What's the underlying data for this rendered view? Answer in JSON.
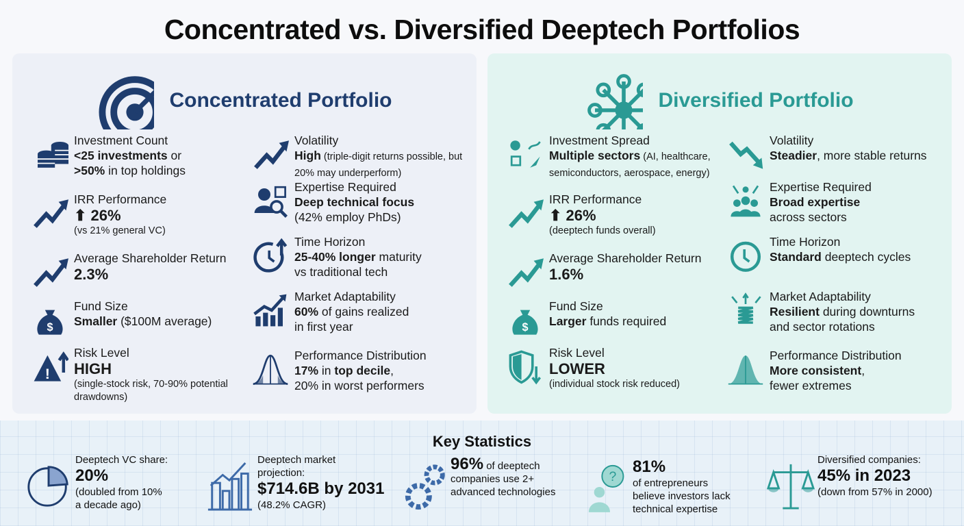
{
  "title": "Concentrated vs. Diversified Deeptech Portfolios",
  "colors": {
    "navy": "#1f3d6e",
    "teal": "#2a9a94",
    "left_bg": "#edf0f7",
    "right_bg": "#e2f4f1"
  },
  "concentrated": {
    "title": "Concentrated Portfolio",
    "icon": "target-icon",
    "items": [
      {
        "icon": "coins-icon",
        "label": "Investment Count",
        "value": [
          {
            "b": "<25 investments"
          },
          {
            "t": " or"
          },
          {
            "br": 1
          },
          {
            "b": ">50%"
          },
          {
            "t": " in top holdings"
          }
        ]
      },
      {
        "icon": "trend-up-icon",
        "label": "IRR Performance",
        "big": "⬆ 26%",
        "sub": "(vs 21% general VC)"
      },
      {
        "icon": "trend-up-icon",
        "label": "Average Shareholder Return",
        "big": "2.3%"
      },
      {
        "icon": "money-bag-icon",
        "label": "Fund Size",
        "value": [
          {
            "b": "Smaller"
          },
          {
            "t": " ($100M average)"
          }
        ]
      },
      {
        "icon": "warning-up-icon",
        "label": "Risk Level",
        "big": "HIGH",
        "sub": "(single-stock risk, 70-90% potential drawdowns)"
      },
      {
        "icon": "trend-up-icon",
        "label": "Volatility",
        "value": [
          {
            "b": "High"
          },
          {
            "s": " (triple-digit returns possible, but 20% may underperform)"
          }
        ]
      },
      {
        "icon": "expert-search-icon",
        "label": "Expertise Required",
        "value": [
          {
            "b": "Deep technical focus"
          },
          {
            "br": 1
          },
          {
            "t": "(42% employ PhDs)"
          }
        ]
      },
      {
        "icon": "clock-up-icon",
        "label": "Time Horizon",
        "value": [
          {
            "b": "25-40% longer"
          },
          {
            "t": " maturity"
          },
          {
            "br": 1
          },
          {
            "t": "vs traditional tech"
          }
        ]
      },
      {
        "icon": "bar-chart-up-icon",
        "label": "Market Adaptability",
        "value": [
          {
            "b": "60%"
          },
          {
            "t": " of gains realized"
          },
          {
            "br": 1
          },
          {
            "t": "in first year"
          }
        ]
      },
      {
        "icon": "bell-curve-tails-icon",
        "label": "Performance Distribution",
        "value": [
          {
            "b": "17%"
          },
          {
            "t": " in "
          },
          {
            "b": "top decile"
          },
          {
            "t": ","
          },
          {
            "br": 1
          },
          {
            "t": "20% in worst performers"
          }
        ]
      }
    ]
  },
  "diversified": {
    "title": "Diversified Portfolio",
    "icon": "network-icon",
    "items": [
      {
        "icon": "sectors-icon",
        "label": "Investment Spread",
        "value": [
          {
            "b": "Multiple sectors"
          },
          {
            "s": " (AI, healthcare, semiconductors, aerospace, energy)"
          }
        ]
      },
      {
        "icon": "trend-up-icon",
        "label": "IRR Performance",
        "big": "⬆ 26%",
        "sub": "(deeptech funds overall)"
      },
      {
        "icon": "trend-up-icon",
        "label": "Average Shareholder Return",
        "big": "1.6%"
      },
      {
        "icon": "money-bag-icon",
        "label": "Fund Size",
        "value": [
          {
            "b": "Larger"
          },
          {
            "t": " funds required"
          }
        ]
      },
      {
        "icon": "shield-down-icon",
        "label": "Risk Level",
        "big": "LOWER",
        "sub": "(individual stock risk reduced)"
      },
      {
        "icon": "trend-down-icon",
        "label": "Volatility",
        "value": [
          {
            "b": "Steadier"
          },
          {
            "t": ", more stable returns"
          }
        ]
      },
      {
        "icon": "team-tools-icon",
        "label": "Expertise Required",
        "value": [
          {
            "b": "Broad expertise"
          },
          {
            "br": 1
          },
          {
            "t": "across sectors"
          }
        ]
      },
      {
        "icon": "clock-icon",
        "label": "Time Horizon",
        "value": [
          {
            "b": "Standard"
          },
          {
            "t": " deeptech cycles"
          }
        ]
      },
      {
        "icon": "spring-icon",
        "label": "Market Adaptability",
        "value": [
          {
            "b": "Resilient"
          },
          {
            "t": " during downturns"
          },
          {
            "br": 1
          },
          {
            "t": "and sector rotations"
          }
        ]
      },
      {
        "icon": "bell-curve-icon",
        "label": "Performance Distribution",
        "value": [
          {
            "b": "More consistent"
          },
          {
            "t": ","
          },
          {
            "br": 1
          },
          {
            "t": "fewer extremes"
          }
        ]
      }
    ]
  },
  "stats": {
    "title": "Key Statistics",
    "items": [
      {
        "icon": "pie-chart-icon",
        "lines": [
          {
            "t": "Deeptech VC share:"
          },
          {
            "b": "20%"
          },
          {
            "t": "(doubled from 10%"
          },
          {
            "t": "a decade ago)"
          }
        ]
      },
      {
        "icon": "city-growth-icon",
        "lines": [
          {
            "t": "Deeptech market"
          },
          {
            "t": "projection:"
          },
          {
            "b": "$714.6B by 2031"
          },
          {
            "t": "(48.2% CAGR)"
          }
        ]
      },
      {
        "icon": "gears-icon",
        "lines": [
          {
            "mix": [
              {
                "b": "96%"
              },
              {
                "t": " of deeptech"
              }
            ]
          },
          {
            "t": "companies use 2+"
          },
          {
            "t": "advanced technologies"
          }
        ]
      },
      {
        "icon": "person-question-icon",
        "lines": [
          {
            "b": "81%"
          },
          {
            "t": "of entrepreneurs"
          },
          {
            "t": "believe investors lack"
          },
          {
            "t": "technical expertise"
          }
        ]
      },
      {
        "icon": "scales-icon",
        "lines": [
          {
            "t": "Diversified companies:"
          },
          {
            "b": "45% in 2023"
          },
          {
            "t": "(down from 57% in 2000)"
          }
        ]
      }
    ]
  }
}
